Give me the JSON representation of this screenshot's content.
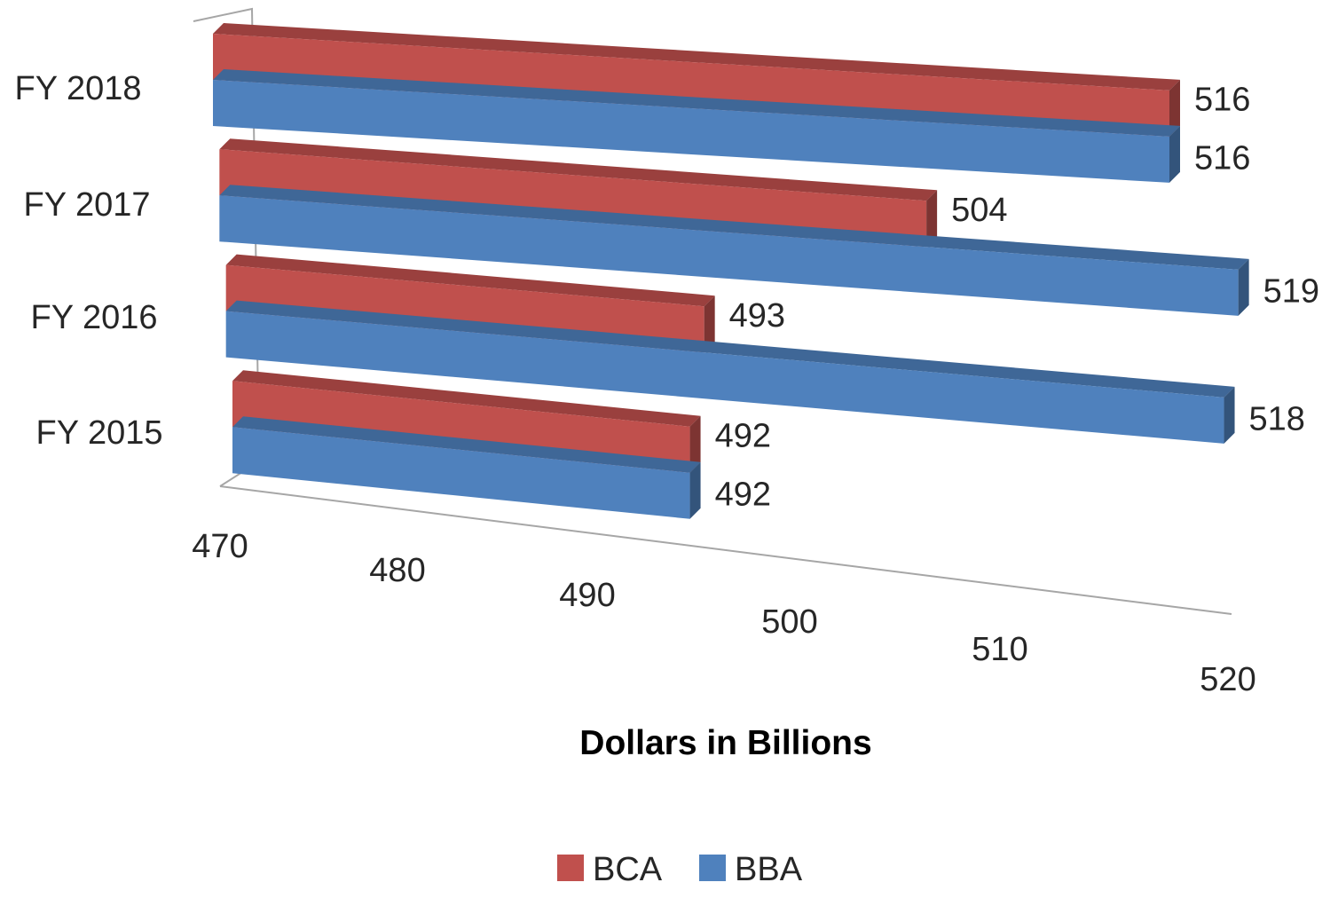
{
  "chart_data": {
    "type": "bar",
    "orientation": "horizontal",
    "style": "3d",
    "title": "",
    "xlabel": "Dollars in Billions",
    "ylabel": "",
    "categories": [
      "FY 2015",
      "FY 2016",
      "FY 2017",
      "FY 2018"
    ],
    "series": [
      {
        "name": "BCA",
        "color": "#c0504d",
        "values": [
          492,
          493,
          504,
          516
        ]
      },
      {
        "name": "BBA",
        "color": "#4f81bd",
        "values": [
          492,
          518,
          519,
          516
        ]
      }
    ],
    "xlim": [
      470,
      520
    ],
    "x_ticks": [
      "470",
      "480",
      "490",
      "500",
      "510",
      "520"
    ],
    "data_labels": true,
    "grid": false,
    "legend_position": "bottom"
  }
}
